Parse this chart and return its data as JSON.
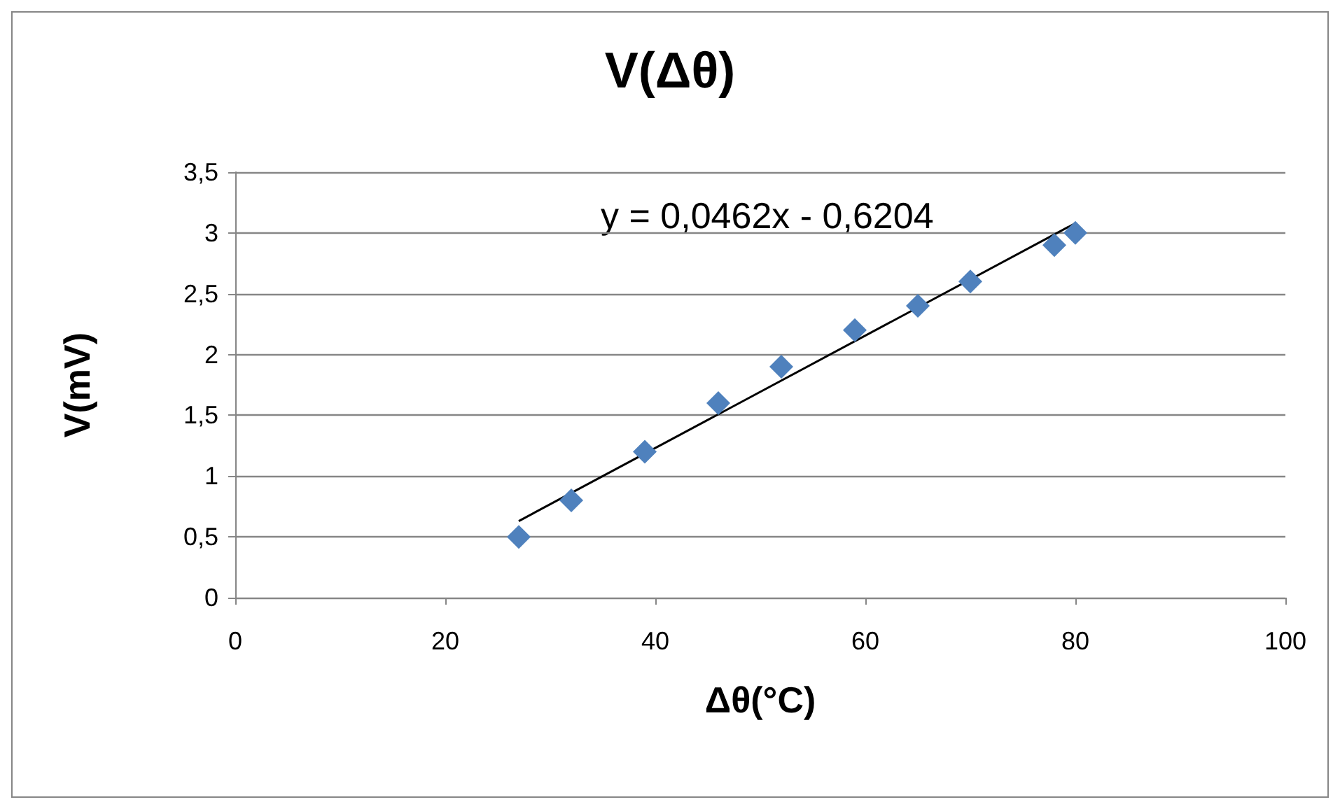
{
  "chart_data": {
    "type": "scatter",
    "title": "V(Δθ)",
    "xlabel": "Δθ(°C)",
    "ylabel": "V(mV)",
    "x": [
      27,
      32,
      39,
      46,
      52,
      59,
      65,
      70,
      78,
      80
    ],
    "series": [
      {
        "type": "line",
        "color": "#000000",
        "marker": "none",
        "x": [
          27,
          80
        ],
        "values": [
          0.63,
          3.08
        ]
      },
      {
        "color": "#4f81bd",
        "marker": "diamond",
        "values": [
          0.5,
          0.8,
          1.2,
          1.6,
          1.9,
          2.2,
          2.4,
          2.6,
          2.9,
          3.0
        ]
      }
    ],
    "xlim": [
      0,
      100
    ],
    "xticks": [
      0,
      20,
      40,
      60,
      80,
      100
    ],
    "ylim": [
      0,
      3.5
    ],
    "yticks": [
      0,
      {
        "value": 0.5,
        "label": "0,5"
      },
      1,
      {
        "value": 1.5,
        "label": "1,5"
      },
      2,
      {
        "value": 2.5,
        "label": "2,5"
      },
      3,
      {
        "value": 3.5,
        "label": "3,5"
      }
    ],
    "grid": "y",
    "annotations": [
      "y = 0,0462x - 0,6204"
    ]
  }
}
